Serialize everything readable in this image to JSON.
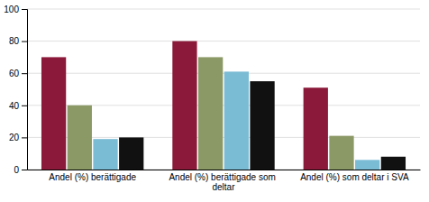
{
  "chart_data": {
    "type": "bar",
    "categories": [
      "Andel (%) berättigade",
      "Andel (%) berättigade som deltar",
      "Andel (%) som deltar i SVA"
    ],
    "series": [
      {
        "color": "#8B1A3A",
        "values": [
          70,
          80,
          51
        ]
      },
      {
        "color": "#8B9966",
        "values": [
          40,
          70,
          21
        ]
      },
      {
        "color": "#7BBCD5",
        "values": [
          19,
          61,
          6
        ]
      },
      {
        "color": "#111111",
        "values": [
          20,
          55,
          8
        ]
      }
    ],
    "ylim": [
      0,
      100
    ],
    "yticks": [
      0,
      20,
      40,
      60,
      80,
      100
    ],
    "grid": true
  }
}
